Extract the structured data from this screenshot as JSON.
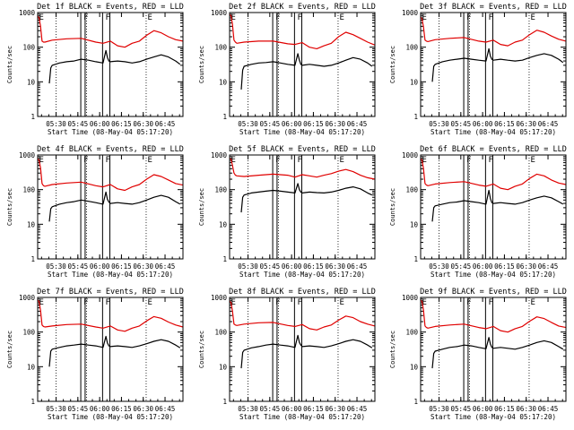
{
  "chart_data": {
    "type": "line",
    "layout": "3x3 grid",
    "title_template": "Det {det} BLACK = Events, RED = LLD",
    "xlabel": "Start Time (08-May-04 05:17:20)",
    "ylabel": "Counts/sec",
    "yscale": "log",
    "ylim": [
      1,
      1000
    ],
    "ytick_labels": [
      "1",
      "10",
      "100",
      "1000"
    ],
    "xlim_minutes_after_start": [
      0,
      100
    ],
    "xtick_labels": [
      "05:30",
      "05:45",
      "06:00",
      "06:15",
      "06:30",
      "06:45"
    ],
    "xtick_minutes_after_start": [
      12.67,
      27.67,
      42.67,
      57.67,
      72.67,
      87.67
    ],
    "dotted_markers_minutes": [
      12.67,
      33.67,
      74.67
    ],
    "solid_markers_minutes": [
      29.67,
      32.67,
      44.67,
      49.67
    ],
    "marker_letters": [
      {
        "letter": "E",
        "minute": 0
      },
      {
        "letter": "F",
        "minute": 30.67
      },
      {
        "letter": "F",
        "minute": 45.67
      },
      {
        "letter": "E",
        "minute": 74.67
      }
    ],
    "series_colors": {
      "Events": "#000000",
      "LLD": "#e00000"
    },
    "panels": [
      {
        "det": "1f",
        "lld": {
          "x": [
            0,
            1,
            2,
            3,
            4,
            5,
            10,
            20,
            30,
            40,
            45,
            50,
            55,
            60,
            65,
            70,
            75,
            80,
            85,
            90,
            95,
            100
          ],
          "y": [
            800,
            700,
            400,
            150,
            140,
            140,
            160,
            175,
            180,
            140,
            130,
            150,
            110,
            100,
            130,
            150,
            220,
            300,
            260,
            200,
            165,
            150
          ]
        },
        "events": {
          "x": [
            8,
            9,
            10,
            15,
            20,
            25,
            30,
            35,
            40,
            45,
            47,
            48,
            49,
            50,
            55,
            60,
            65,
            70,
            75,
            80,
            85,
            90,
            95,
            98
          ],
          "y": [
            9,
            25,
            30,
            35,
            38,
            40,
            45,
            42,
            38,
            35,
            80,
            50,
            40,
            38,
            40,
            38,
            35,
            38,
            45,
            52,
            60,
            52,
            40,
            32
          ]
        }
      },
      {
        "det": "2f",
        "lld": {
          "x": [
            0,
            1,
            2,
            3,
            4,
            5,
            10,
            20,
            30,
            40,
            45,
            50,
            55,
            60,
            65,
            70,
            75,
            80,
            85,
            90,
            95,
            100
          ],
          "y": [
            900,
            800,
            450,
            160,
            140,
            130,
            140,
            150,
            150,
            125,
            120,
            135,
            100,
            90,
            110,
            130,
            200,
            270,
            230,
            180,
            140,
            115
          ]
        },
        "events": {
          "x": [
            8,
            9,
            10,
            15,
            20,
            25,
            30,
            35,
            40,
            45,
            47,
            48,
            49,
            50,
            55,
            60,
            65,
            70,
            75,
            80,
            85,
            90,
            95,
            98
          ],
          "y": [
            6,
            22,
            28,
            32,
            35,
            36,
            38,
            35,
            32,
            30,
            65,
            42,
            32,
            30,
            32,
            30,
            28,
            30,
            35,
            42,
            50,
            45,
            35,
            28
          ]
        }
      },
      {
        "det": "3f",
        "lld": {
          "x": [
            0,
            1,
            2,
            3,
            4,
            5,
            10,
            20,
            30,
            40,
            45,
            50,
            55,
            60,
            65,
            70,
            75,
            80,
            85,
            90,
            95,
            100
          ],
          "y": [
            750,
            650,
            380,
            160,
            150,
            145,
            165,
            180,
            190,
            150,
            140,
            160,
            120,
            110,
            140,
            160,
            230,
            310,
            270,
            210,
            170,
            150
          ]
        },
        "events": {
          "x": [
            8,
            9,
            10,
            15,
            20,
            25,
            30,
            35,
            40,
            45,
            47,
            48,
            49,
            50,
            55,
            60,
            65,
            70,
            75,
            80,
            85,
            90,
            95,
            98
          ],
          "y": [
            10,
            28,
            32,
            38,
            42,
            45,
            48,
            45,
            42,
            40,
            90,
            55,
            45,
            42,
            45,
            42,
            40,
            42,
            50,
            58,
            65,
            58,
            45,
            36
          ]
        }
      },
      {
        "det": "4f",
        "lld": {
          "x": [
            0,
            1,
            2,
            3,
            4,
            5,
            10,
            20,
            30,
            40,
            45,
            50,
            55,
            60,
            65,
            70,
            75,
            80,
            85,
            90,
            95,
            100
          ],
          "y": [
            800,
            700,
            420,
            150,
            130,
            125,
            140,
            155,
            165,
            130,
            120,
            140,
            105,
            95,
            120,
            140,
            200,
            270,
            240,
            190,
            150,
            135
          ]
        },
        "events": {
          "x": [
            8,
            9,
            10,
            15,
            20,
            25,
            30,
            35,
            40,
            45,
            47,
            48,
            49,
            50,
            55,
            60,
            65,
            70,
            75,
            80,
            85,
            90,
            95,
            98
          ],
          "y": [
            12,
            28,
            32,
            38,
            42,
            45,
            50,
            46,
            42,
            38,
            85,
            52,
            44,
            40,
            42,
            40,
            38,
            42,
            50,
            60,
            68,
            60,
            45,
            38
          ]
        }
      },
      {
        "det": "5f",
        "lld": {
          "x": [
            0,
            1,
            2,
            3,
            4,
            5,
            10,
            20,
            30,
            40,
            45,
            50,
            55,
            60,
            65,
            70,
            75,
            80,
            85,
            90,
            95,
            100
          ],
          "y": [
            800,
            750,
            500,
            300,
            260,
            250,
            240,
            260,
            280,
            260,
            230,
            270,
            250,
            230,
            260,
            290,
            340,
            380,
            330,
            260,
            220,
            200
          ]
        },
        "events": {
          "x": [
            8,
            9,
            10,
            15,
            20,
            25,
            30,
            35,
            40,
            45,
            47,
            48,
            49,
            50,
            55,
            60,
            65,
            70,
            75,
            80,
            85,
            90,
            95,
            98
          ],
          "y": [
            22,
            60,
            70,
            80,
            85,
            90,
            95,
            90,
            85,
            80,
            150,
            100,
            85,
            80,
            85,
            82,
            80,
            85,
            95,
            110,
            120,
            105,
            80,
            70
          ]
        }
      },
      {
        "det": "6f",
        "lld": {
          "x": [
            0,
            1,
            2,
            3,
            4,
            5,
            10,
            20,
            30,
            40,
            45,
            50,
            55,
            60,
            65,
            70,
            75,
            80,
            85,
            90,
            95,
            100
          ],
          "y": [
            800,
            700,
            400,
            150,
            135,
            130,
            145,
            160,
            170,
            135,
            125,
            145,
            110,
            100,
            125,
            145,
            210,
            280,
            250,
            190,
            155,
            140
          ]
        },
        "events": {
          "x": [
            8,
            9,
            10,
            15,
            20,
            25,
            30,
            35,
            40,
            45,
            47,
            48,
            49,
            50,
            55,
            60,
            65,
            70,
            75,
            80,
            85,
            90,
            95,
            98
          ],
          "y": [
            12,
            30,
            34,
            38,
            42,
            44,
            48,
            45,
            42,
            38,
            95,
            55,
            42,
            40,
            42,
            40,
            38,
            42,
            50,
            58,
            65,
            58,
            45,
            38
          ]
        }
      },
      {
        "det": "7f",
        "lld": {
          "x": [
            0,
            1,
            2,
            3,
            4,
            5,
            10,
            20,
            30,
            40,
            45,
            50,
            55,
            60,
            65,
            70,
            75,
            80,
            85,
            90,
            95,
            100
          ],
          "y": [
            850,
            750,
            420,
            160,
            145,
            140,
            150,
            165,
            170,
            140,
            130,
            150,
            115,
            105,
            130,
            150,
            210,
            280,
            250,
            195,
            160,
            140
          ]
        },
        "events": {
          "x": [
            8,
            9,
            10,
            15,
            20,
            25,
            30,
            35,
            40,
            45,
            47,
            48,
            49,
            50,
            55,
            60,
            65,
            70,
            75,
            80,
            85,
            90,
            95,
            98
          ],
          "y": [
            10,
            28,
            32,
            36,
            40,
            42,
            45,
            42,
            40,
            36,
            75,
            48,
            40,
            38,
            40,
            38,
            36,
            40,
            46,
            54,
            60,
            54,
            42,
            35
          ]
        }
      },
      {
        "det": "8f",
        "lld": {
          "x": [
            0,
            1,
            2,
            3,
            4,
            5,
            10,
            20,
            30,
            40,
            45,
            50,
            55,
            60,
            65,
            70,
            75,
            80,
            85,
            90,
            95,
            100
          ],
          "y": [
            800,
            700,
            400,
            170,
            160,
            155,
            170,
            185,
            190,
            155,
            145,
            165,
            125,
            115,
            140,
            160,
            220,
            290,
            260,
            200,
            170,
            150
          ]
        },
        "events": {
          "x": [
            8,
            9,
            10,
            15,
            20,
            25,
            30,
            35,
            40,
            45,
            47,
            48,
            49,
            50,
            55,
            60,
            65,
            70,
            75,
            80,
            85,
            90,
            95,
            98
          ],
          "y": [
            9,
            26,
            30,
            35,
            38,
            42,
            45,
            42,
            40,
            36,
            80,
            50,
            42,
            38,
            40,
            38,
            36,
            40,
            46,
            54,
            60,
            54,
            42,
            35
          ]
        }
      },
      {
        "det": "9f",
        "lld": {
          "x": [
            0,
            1,
            2,
            3,
            4,
            5,
            10,
            20,
            30,
            40,
            45,
            50,
            55,
            60,
            65,
            70,
            75,
            80,
            85,
            90,
            95,
            100
          ],
          "y": [
            850,
            750,
            420,
            150,
            135,
            130,
            145,
            160,
            170,
            135,
            125,
            145,
            110,
            100,
            125,
            145,
            205,
            275,
            245,
            190,
            150,
            135
          ]
        },
        "events": {
          "x": [
            8,
            9,
            10,
            15,
            20,
            25,
            30,
            35,
            40,
            45,
            47,
            48,
            49,
            50,
            55,
            60,
            65,
            70,
            75,
            80,
            85,
            90,
            95,
            98
          ],
          "y": [
            9,
            24,
            28,
            32,
            36,
            38,
            42,
            40,
            36,
            33,
            70,
            45,
            36,
            34,
            36,
            34,
            32,
            36,
            42,
            50,
            56,
            50,
            38,
            32
          ]
        }
      }
    ]
  }
}
